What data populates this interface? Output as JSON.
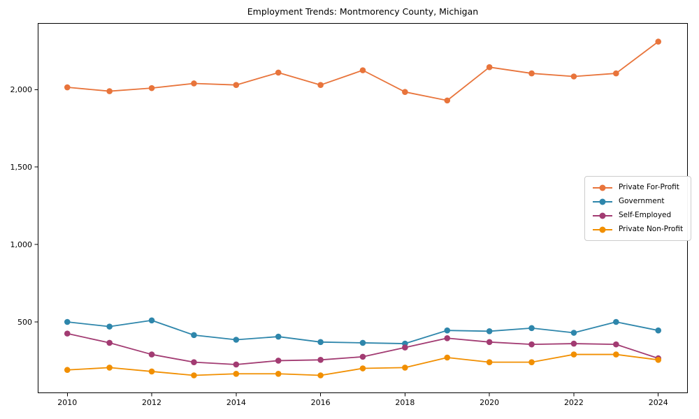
{
  "chart_data": {
    "type": "line",
    "title": "Employment Trends: Montmorency County, Michigan",
    "x": [
      2010,
      2011,
      2012,
      2013,
      2014,
      2015,
      2016,
      2017,
      2018,
      2019,
      2020,
      2021,
      2022,
      2023,
      2024
    ],
    "series": [
      {
        "name": "Private For-Profit",
        "color": "#E8743B",
        "values": [
          2015,
          1990,
          2010,
          2040,
          2030,
          2110,
          2030,
          2125,
          1985,
          1930,
          2145,
          2105,
          2085,
          2105,
          2310
        ]
      },
      {
        "name": "Government",
        "color": "#2E86AB",
        "values": [
          500,
          470,
          510,
          415,
          385,
          405,
          370,
          365,
          360,
          445,
          440,
          460,
          430,
          500,
          445
        ]
      },
      {
        "name": "Self-Employed",
        "color": "#A23B72",
        "values": [
          425,
          365,
          290,
          240,
          225,
          250,
          255,
          275,
          335,
          395,
          370,
          355,
          360,
          355,
          265
        ]
      },
      {
        "name": "Private Non-Profit",
        "color": "#F18F01",
        "values": [
          190,
          205,
          180,
          155,
          165,
          165,
          155,
          200,
          205,
          270,
          240,
          240,
          290,
          290,
          255
        ]
      }
    ],
    "xlabel": "",
    "ylabel": "",
    "xlim": [
      2009.3,
      2024.7
    ],
    "ylim": [
      40,
      2430
    ],
    "x_ticks": [
      2010,
      2012,
      2014,
      2016,
      2018,
      2020,
      2022,
      2024
    ],
    "x_tick_labels": [
      "2010",
      "2012",
      "2014",
      "2016",
      "2018",
      "2020",
      "2022",
      "2024"
    ],
    "y_ticks": [
      500,
      1000,
      1500,
      2000
    ],
    "y_tick_labels": [
      "500",
      "1,000",
      "1,500",
      "2,000"
    ],
    "grid": false,
    "legend_position": "center-right",
    "marker": "circle",
    "line_width": 1.8,
    "marker_radius": 4.3,
    "axis_color": "#000000",
    "background": "#ffffff"
  }
}
